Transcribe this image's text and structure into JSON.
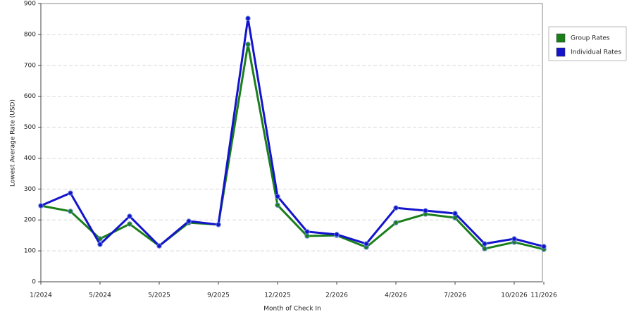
{
  "chart_data": {
    "type": "line",
    "x_label": "Month of Check In",
    "y_label": "Lowest Average Rate (USD)",
    "categories": [
      "1/2024",
      null,
      "5/2024",
      null,
      "5/2025",
      null,
      "9/2025",
      null,
      "12/2025",
      null,
      "2/2026",
      null,
      "4/2026",
      null,
      "7/2026",
      null,
      "10/2026",
      "11/2026"
    ],
    "series": [
      {
        "name": "Group Rates",
        "color": "#1a7f1a",
        "values": [
          246,
          228,
          139,
          187,
          116,
          191,
          185,
          768,
          248,
          148,
          150,
          112,
          191,
          219,
          207,
          107,
          128,
          105
        ]
      },
      {
        "name": "Individual Rates",
        "color": "#1414cc",
        "values": [
          246,
          287,
          121,
          212,
          116,
          196,
          185,
          852,
          276,
          162,
          153,
          123,
          239,
          230,
          221,
          123,
          139,
          114
        ]
      }
    ],
    "ylim": [
      0,
      900
    ],
    "yticks": [
      0,
      100,
      200,
      300,
      400,
      500,
      600,
      700,
      800,
      900
    ],
    "grid": true,
    "legend": "right"
  }
}
